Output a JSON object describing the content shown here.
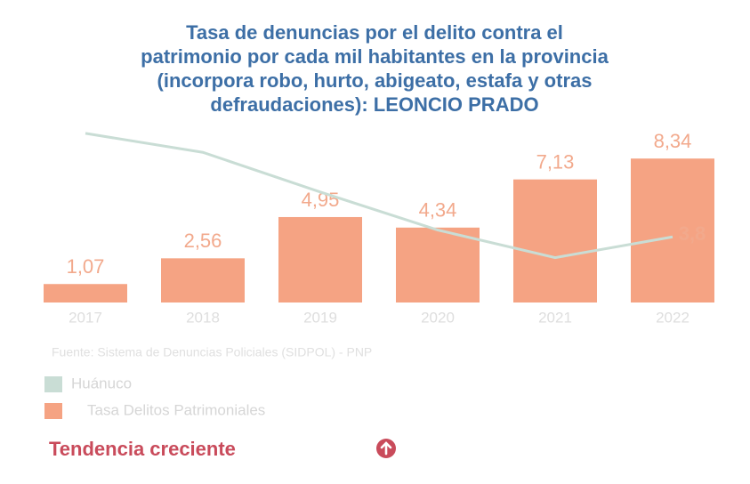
{
  "chart_data": {
    "type": "bar",
    "title_lines": [
      "Tasa de denuncias por el delito contra el",
      "patrimonio por cada mil habitantes en la provincia",
      "(incorpora robo, hurto, abigeato, estafa y otras",
      "defraudaciones): LEONCIO PRADO"
    ],
    "categories": [
      "2017",
      "2018",
      "2019",
      "2020",
      "2021",
      "2022"
    ],
    "series": [
      {
        "name": "Tasa Delitos Patrimoniales",
        "type": "bar",
        "color": "#f5a383",
        "values": [
          1.07,
          2.56,
          4.95,
          4.34,
          7.13,
          8.34
        ],
        "value_labels": [
          "1,07",
          "2,56",
          "4,95",
          "4,34",
          "7,13",
          "8,34"
        ]
      },
      {
        "name": "Huánuco",
        "type": "line",
        "color": "#c9ddd5",
        "values": [
          9.8,
          8.7,
          6.4,
          4.2,
          2.6,
          3.8
        ],
        "value_labels": [
          null,
          null,
          null,
          null,
          null,
          "3,8"
        ]
      }
    ],
    "ylim": [
      0,
      10
    ],
    "source": "Fuente: Sistema de Denuncias Policiales (SIDPOL) - PNP",
    "trend": "Tendencia creciente"
  }
}
